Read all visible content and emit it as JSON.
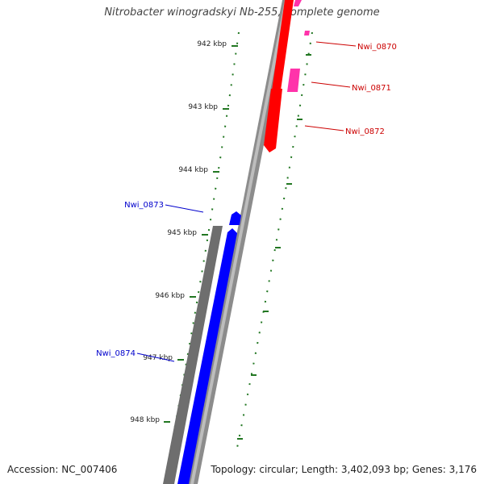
{
  "title": "Nitrobacter winogradskyi Nb-255, complete genome",
  "footer": {
    "accession": "Accession: NC_007406",
    "summary": "Topology: circular; Length: 3,402,093 bp; Genes: 3,176"
  },
  "colors": {
    "forward_cds": "#ff0000",
    "forward_rna": "#ff33aa",
    "reverse_cds": "#0000ff",
    "backbone": "#808080",
    "ticks": "#227722",
    "label_forward": "#cc0000",
    "label_reverse": "#0000cc"
  },
  "ticks": [
    {
      "label": "942 kbp"
    },
    {
      "label": "943 kbp"
    },
    {
      "label": "944 kbp"
    },
    {
      "label": "945 kbp"
    },
    {
      "label": "946 kbp"
    },
    {
      "label": "947 kbp"
    },
    {
      "label": "948 kbp"
    }
  ],
  "genes": [
    {
      "name": "Nwi_0870",
      "strand": "forward"
    },
    {
      "name": "Nwi_0871",
      "strand": "forward"
    },
    {
      "name": "Nwi_0872",
      "strand": "forward"
    },
    {
      "name": "Nwi_0873",
      "strand": "reverse"
    },
    {
      "name": "Nwi_0874",
      "strand": "reverse"
    }
  ]
}
